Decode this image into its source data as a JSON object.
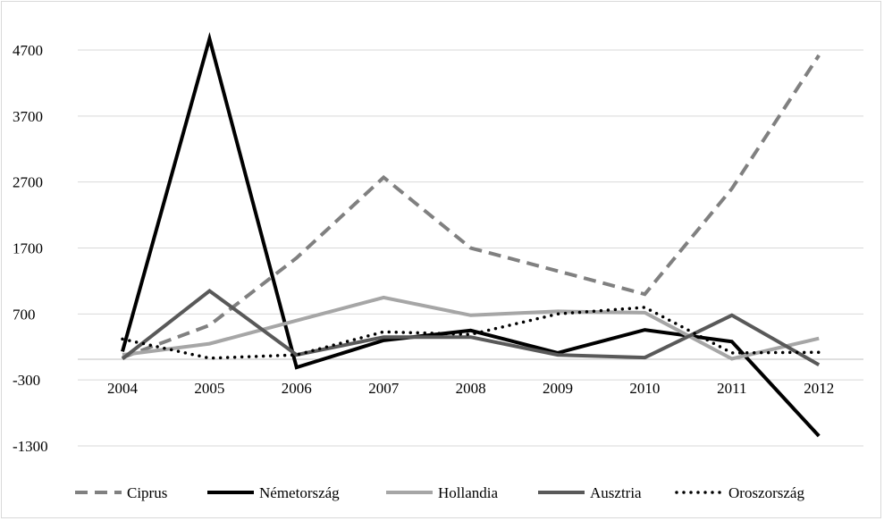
{
  "chart_data": {
    "type": "line",
    "title": "",
    "xlabel": "",
    "ylabel": "",
    "categories": [
      "2004",
      "2005",
      "2006",
      "2007",
      "2008",
      "2009",
      "2010",
      "2011",
      "2012"
    ],
    "ylim": [
      -1300,
      4700
    ],
    "yticks": [
      4700,
      3700,
      2700,
      1700,
      700,
      -300,
      -1300
    ],
    "ytick_labels": [
      "4700",
      "3700",
      "2700",
      "1700",
      "700",
      "-300",
      "-1300"
    ],
    "grid": true,
    "legend_position": "bottom",
    "series": [
      {
        "name": "Ciprus",
        "values": [
          40,
          530,
          1550,
          2770,
          1700,
          1350,
          1000,
          2600,
          4620
        ],
        "color": "#808080",
        "dash": "dashed"
      },
      {
        "name": "Németország",
        "values": [
          130,
          4870,
          -110,
          300,
          450,
          110,
          460,
          280,
          -1150
        ],
        "color": "#000000",
        "dash": "solid"
      },
      {
        "name": "Hollandia",
        "values": [
          80,
          250,
          600,
          950,
          680,
          740,
          720,
          20,
          330
        ],
        "color": "#a6a6a6",
        "dash": "solid"
      },
      {
        "name": "Ausztria",
        "values": [
          20,
          1050,
          80,
          350,
          350,
          80,
          40,
          680,
          -70
        ],
        "color": "#595959",
        "dash": "solid"
      },
      {
        "name": "Oroszország",
        "values": [
          320,
          30,
          80,
          430,
          390,
          700,
          800,
          110,
          120
        ],
        "color": "#000000",
        "dash": "dotted"
      }
    ]
  }
}
